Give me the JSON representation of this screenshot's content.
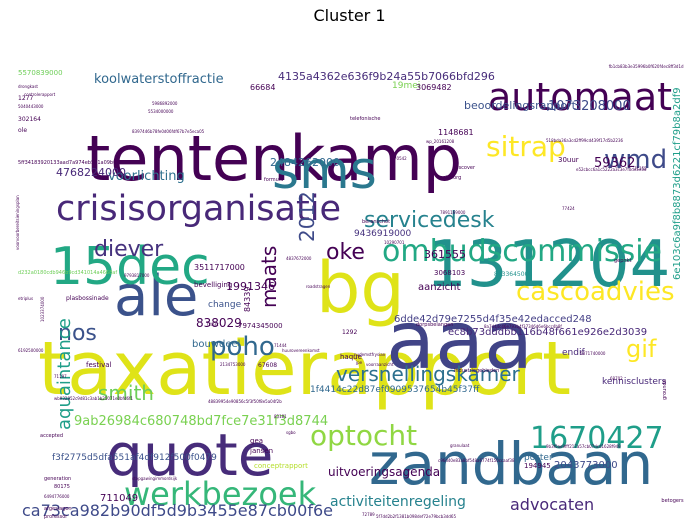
{
  "chart_data": {
    "type": "wordcloud",
    "title": "Cluster 1",
    "colormap": "viridis",
    "background": "#ffffff",
    "words": [
      {
        "text": "taxatierapport",
        "weight": 100,
        "color": "#dfe318"
      },
      {
        "text": "tentenkamp",
        "weight": 78,
        "color": "#440154"
      },
      {
        "text": "zandbaan",
        "weight": 74,
        "color": "#31688e"
      },
      {
        "text": "131204",
        "weight": 72,
        "color": "#21918c"
      },
      {
        "text": "aaa",
        "weight": 72,
        "color": "#414487"
      },
      {
        "text": "bg",
        "weight": 66,
        "color": "#dfe318"
      },
      {
        "text": "sms",
        "weight": 64,
        "color": "#2a788e"
      },
      {
        "text": "ale",
        "weight": 60,
        "color": "#3b528b"
      },
      {
        "text": "quote",
        "weight": 58,
        "color": "#472c7a"
      },
      {
        "text": "15dec",
        "weight": 56,
        "color": "#22a884"
      },
      {
        "text": "automaat",
        "weight": 42,
        "color": "#440154"
      },
      {
        "text": "crisisorganisatie",
        "weight": 40,
        "color": "#482878"
      },
      {
        "text": "werkbezoek",
        "weight": 36,
        "color": "#35b779"
      },
      {
        "text": "ombudscommissie",
        "weight": 34,
        "color": "#22a884"
      },
      {
        "text": "1670427",
        "weight": 34,
        "color": "#1f9e89"
      },
      {
        "text": "optocht",
        "weight": 32,
        "color": "#90d743"
      },
      {
        "text": "sitrap",
        "weight": 30,
        "color": "#fde725"
      },
      {
        "text": "cascoadvies",
        "weight": 30,
        "color": "#fde725"
      },
      {
        "text": "wmd",
        "weight": 28,
        "color": "#3e4a89"
      },
      {
        "text": "poho",
        "weight": 28,
        "color": "#31688e"
      },
      {
        "text": "servicedesk",
        "weight": 24,
        "color": "#26828e"
      },
      {
        "text": "diever",
        "weight": 24,
        "color": "#46327e"
      },
      {
        "text": "oke",
        "weight": 24,
        "color": "#440154"
      },
      {
        "text": "nos",
        "weight": 24,
        "color": "#3b528b"
      },
      {
        "text": "gif",
        "weight": 24,
        "color": "#fde725"
      },
      {
        "text": "smith",
        "weight": 22,
        "color": "#6ece58"
      },
      {
        "text": "versnellingskamer",
        "weight": 22,
        "color": "#2d708e"
      },
      {
        "text": "2012",
        "weight": 22,
        "color": "#3e4a89"
      },
      {
        "text": "maats",
        "weight": 22,
        "color": "#440154"
      },
      {
        "text": "aquaintance",
        "weight": 20,
        "color": "#1f9e89"
      },
      {
        "text": "ca73ca982b90df5d9b3455e87cb00f6e",
        "weight": 18,
        "color": "#3e4a89"
      },
      {
        "text": "advocaten",
        "weight": 18,
        "color": "#482878"
      },
      {
        "text": "activiteitenregeling",
        "weight": 16,
        "color": "#26828e"
      },
      {
        "text": "9ab26984c680748bd7fce7e31f3d8744",
        "weight": 14,
        "color": "#7ad151"
      },
      {
        "text": "uitvoeringsagenda",
        "weight": 14,
        "color": "#440154"
      },
      {
        "text": "koolwaterstoffractie",
        "weight": 14,
        "color": "#31688e"
      },
      {
        "text": "voorlichting",
        "weight": 14,
        "color": "#2d708e"
      },
      {
        "text": "4135a4362e636f9b24a55b7066bfd296",
        "weight": 12,
        "color": "#472c7a"
      },
      {
        "text": "beoordelingsrapport",
        "weight": 12,
        "color": "#3b528b"
      },
      {
        "text": "1073208000",
        "weight": 14,
        "color": "#3e4a89"
      },
      {
        "text": "59362",
        "weight": 14,
        "color": "#440154"
      },
      {
        "text": "2484262000",
        "weight": 12,
        "color": "#31688e"
      },
      {
        "text": "4768224000",
        "weight": 12,
        "color": "#482878"
      },
      {
        "text": "6dde42d79e7255d4f35e42edacced248",
        "weight": 11,
        "color": "#433e85"
      },
      {
        "text": "ec8b73dddbb116b48f661e926e2d3039",
        "weight": 11,
        "color": "#482878"
      },
      {
        "text": "6e103c6a9f8b8873d6221cf79b8a2df9",
        "weight": 11,
        "color": "#1f9e89"
      },
      {
        "text": "838029",
        "weight": 12,
        "color": "#440154"
      },
      {
        "text": "bouwdeel",
        "weight": 10,
        "color": "#31688e"
      },
      {
        "text": "1991346",
        "weight": 11,
        "color": "#440154"
      },
      {
        "text": "361555",
        "weight": 11,
        "color": "#440154"
      },
      {
        "text": "aanzicht",
        "weight": 10,
        "color": "#440154"
      },
      {
        "text": "711049",
        "weight": 10,
        "color": "#440154"
      },
      {
        "text": "poster",
        "weight": 9,
        "color": "#31688e"
      },
      {
        "text": "2043773000",
        "weight": 10,
        "color": "#3e4a89"
      },
      {
        "text": "1f4414c22d87ef0909537654b45f37ff",
        "weight": 9,
        "color": "#31688e"
      },
      {
        "text": "f3f2775d5dfa551af4df912f500f0479",
        "weight": 9,
        "color": "#3b528b"
      },
      {
        "text": "kennisclusters",
        "weight": 9,
        "color": "#482878"
      },
      {
        "text": "change",
        "weight": 9,
        "color": "#3b528b"
      },
      {
        "text": "endif",
        "weight": 9,
        "color": "#482878"
      },
      {
        "text": "9436919000",
        "weight": 9,
        "color": "#46327e"
      },
      {
        "text": "3511717000",
        "weight": 8,
        "color": "#440154"
      },
      {
        "text": "19mei",
        "weight": 9,
        "color": "#7ad151"
      },
      {
        "text": "66684",
        "weight": 8,
        "color": "#440154"
      },
      {
        "text": "3069482",
        "weight": 8,
        "color": "#440154"
      },
      {
        "text": "1148681",
        "weight": 8,
        "color": "#440154"
      },
      {
        "text": "84339",
        "weight": 8,
        "color": "#440154"
      },
      {
        "text": "7974345000",
        "weight": 7,
        "color": "#440154"
      },
      {
        "text": "3068103",
        "weight": 7,
        "color": "#440154"
      },
      {
        "text": "festival",
        "weight": 7,
        "color": "#440154"
      },
      {
        "text": "conceptrapport",
        "weight": 7,
        "color": "#b5de2b"
      },
      {
        "text": "jansen",
        "weight": 7,
        "color": "#440154"
      },
      {
        "text": "gea",
        "weight": 7,
        "color": "#440154"
      },
      {
        "text": "haque",
        "weight": 7,
        "color": "#440154"
      },
      {
        "text": "5570839000",
        "weight": 7,
        "color": "#6ece58"
      },
      {
        "text": "30uur",
        "weight": 7,
        "color": "#440154"
      },
      {
        "text": "bevelliging",
        "weight": 7,
        "color": "#440154"
      },
      {
        "text": "194945",
        "weight": 7,
        "color": "#440154"
      },
      {
        "text": "67608",
        "weight": 6,
        "color": "#440154"
      },
      {
        "text": "1292",
        "weight": 6,
        "color": "#440154"
      },
      {
        "text": "plasbossinade",
        "weight": 6,
        "color": "#440154"
      },
      {
        "text": "8133645000",
        "weight": 6,
        "color": "#21918c"
      },
      {
        "text": "302164",
        "weight": 6,
        "color": "#440154"
      },
      {
        "text": "1277",
        "weight": 6,
        "color": "#440154"
      },
      {
        "text": "ole",
        "weight": 6,
        "color": "#440154"
      },
      {
        "text": "dorpsbelangen",
        "weight": 5,
        "color": "#440154"
      },
      {
        "text": "generation",
        "weight": 5,
        "color": "#440154"
      },
      {
        "text": "80175",
        "weight": 5,
        "color": "#440154"
      },
      {
        "text": "afgesiagen",
        "weight": 5,
        "color": "#440154"
      },
      {
        "text": "professor",
        "weight": 5,
        "color": "#440154"
      },
      {
        "text": "industriegebieden",
        "weight": 5,
        "color": "#440154"
      },
      {
        "text": "discover",
        "weight": 5,
        "color": "#440154"
      },
      {
        "text": "telefonische",
        "weight": 5,
        "color": "#440154"
      },
      {
        "text": "formula",
        "weight": 5,
        "color": "#440154"
      },
      {
        "text": "beranschot",
        "weight": 5,
        "color": "#440154"
      },
      {
        "text": "schiborg",
        "weight": 5,
        "color": "#440154"
      },
      {
        "text": "gepnkt",
        "weight": 5,
        "color": "#440154"
      },
      {
        "text": "grounds",
        "weight": 5,
        "color": "#440154"
      },
      {
        "text": "betogers",
        "weight": 5,
        "color": "#440154"
      },
      {
        "text": "accepted",
        "weight": 5,
        "color": "#440154"
      },
      {
        "text": "stopgawingimmordsijk",
        "weight": 4,
        "color": "#440154"
      },
      {
        "text": "voorvoorbereitsieningsplan",
        "weight": 4,
        "color": "#440154"
      },
      {
        "text": "drongkast",
        "weight": 4,
        "color": "#440154"
      },
      {
        "text": "10290701",
        "weight": 4,
        "color": "#440154"
      },
      {
        "text": "70542",
        "weight": 4,
        "color": "#440154"
      },
      {
        "text": "etriplus",
        "weight": 4,
        "color": "#440154"
      },
      {
        "text": "72832",
        "weight": 4,
        "color": "#440154"
      },
      {
        "text": "68702",
        "weight": 4,
        "color": "#440154"
      },
      {
        "text": "71155",
        "weight": 4,
        "color": "#440154"
      },
      {
        "text": "71197",
        "weight": 4,
        "color": "#440154"
      },
      {
        "text": "71444",
        "weight": 4,
        "color": "#440154"
      },
      {
        "text": "83181",
        "weight": 4,
        "color": "#440154"
      },
      {
        "text": "77424",
        "weight": 4,
        "color": "#440154"
      },
      {
        "text": "72789",
        "weight": 4,
        "color": "#440154"
      },
      {
        "text": "sgbo",
        "weight": 4,
        "color": "#440154"
      },
      {
        "text": "granulaat",
        "weight": 4,
        "color": "#440154"
      },
      {
        "text": "jpe",
        "weight": 4,
        "color": "#440154"
      },
      {
        "text": "wp_20161208",
        "weight": 4,
        "color": "#440154"
      },
      {
        "text": "controlerapport",
        "weight": 4,
        "color": "#440154"
      },
      {
        "text": "5040443000",
        "weight": 4,
        "color": "#440154"
      },
      {
        "text": "1023374000",
        "weight": 4,
        "color": "#440154"
      },
      {
        "text": "9793817000",
        "weight": 4,
        "color": "#440154"
      },
      {
        "text": "6192500000",
        "weight": 4,
        "color": "#440154"
      },
      {
        "text": "5871740000",
        "weight": 4,
        "color": "#440154"
      },
      {
        "text": "6494776000",
        "weight": 4,
        "color": "#440154"
      },
      {
        "text": "7891169000",
        "weight": 4,
        "color": "#440154"
      },
      {
        "text": "4837672000",
        "weight": 4,
        "color": "#440154"
      },
      {
        "text": "2134753000",
        "weight": 4,
        "color": "#440154"
      },
      {
        "text": "5986892000",
        "weight": 4,
        "color": "#440154"
      },
      {
        "text": "5534000000",
        "weight": 4,
        "color": "#440154"
      },
      {
        "text": "huurovereenkomst",
        "weight": 4,
        "color": "#440154"
      },
      {
        "text": "nudemstfrysian",
        "weight": 4,
        "color": "#440154"
      },
      {
        "text": "voorraanzicht",
        "weight": 4,
        "color": "#440154"
      },
      {
        "text": "roadstragen",
        "weight": 4,
        "color": "#440154"
      },
      {
        "text": "518bda36a3cd2ff99cd439f17d5b2236",
        "weight": 4,
        "color": "#440154"
      },
      {
        "text": "8397446b78fe0d06fdf67b7e5eca05",
        "weight": 4,
        "color": "#440154"
      },
      {
        "text": "e52cbcc6a1c5222a3c3e7f0de5e5d",
        "weight": 4,
        "color": "#440154"
      },
      {
        "text": "5ff34183920133aad7a974eb561a09b02",
        "weight": 5,
        "color": "#440154"
      },
      {
        "text": "d232a0180cdb946b9cd341014a4668af",
        "weight": 5,
        "color": "#6ece58"
      },
      {
        "text": "5f7dd2b2f1381b098def72e79bcb3dd65",
        "weight": 4,
        "color": "#440154"
      },
      {
        "text": "c96d40e83a8bf548a6774f150ccaaf38",
        "weight": 4,
        "color": "#440154"
      },
      {
        "text": "9b3f0ae9fff217a57cb07dcd1628f949",
        "weight": 4,
        "color": "#440154"
      },
      {
        "text": "48839954e90856c5f3f50f8e5a04f2b",
        "weight": 4,
        "color": "#440154"
      },
      {
        "text": "wb932852c9d81c3ab1b25071e0bfd6f1",
        "weight": 4,
        "color": "#440154"
      },
      {
        "text": "fb1cb83b3e35996b0f620f4ec8ff3d1d",
        "weight": 4,
        "color": "#440154"
      },
      {
        "text": "8a7d44c46e793b4f37346d6e6bcc4b8f",
        "weight": 4,
        "color": "#440154"
      }
    ]
  }
}
